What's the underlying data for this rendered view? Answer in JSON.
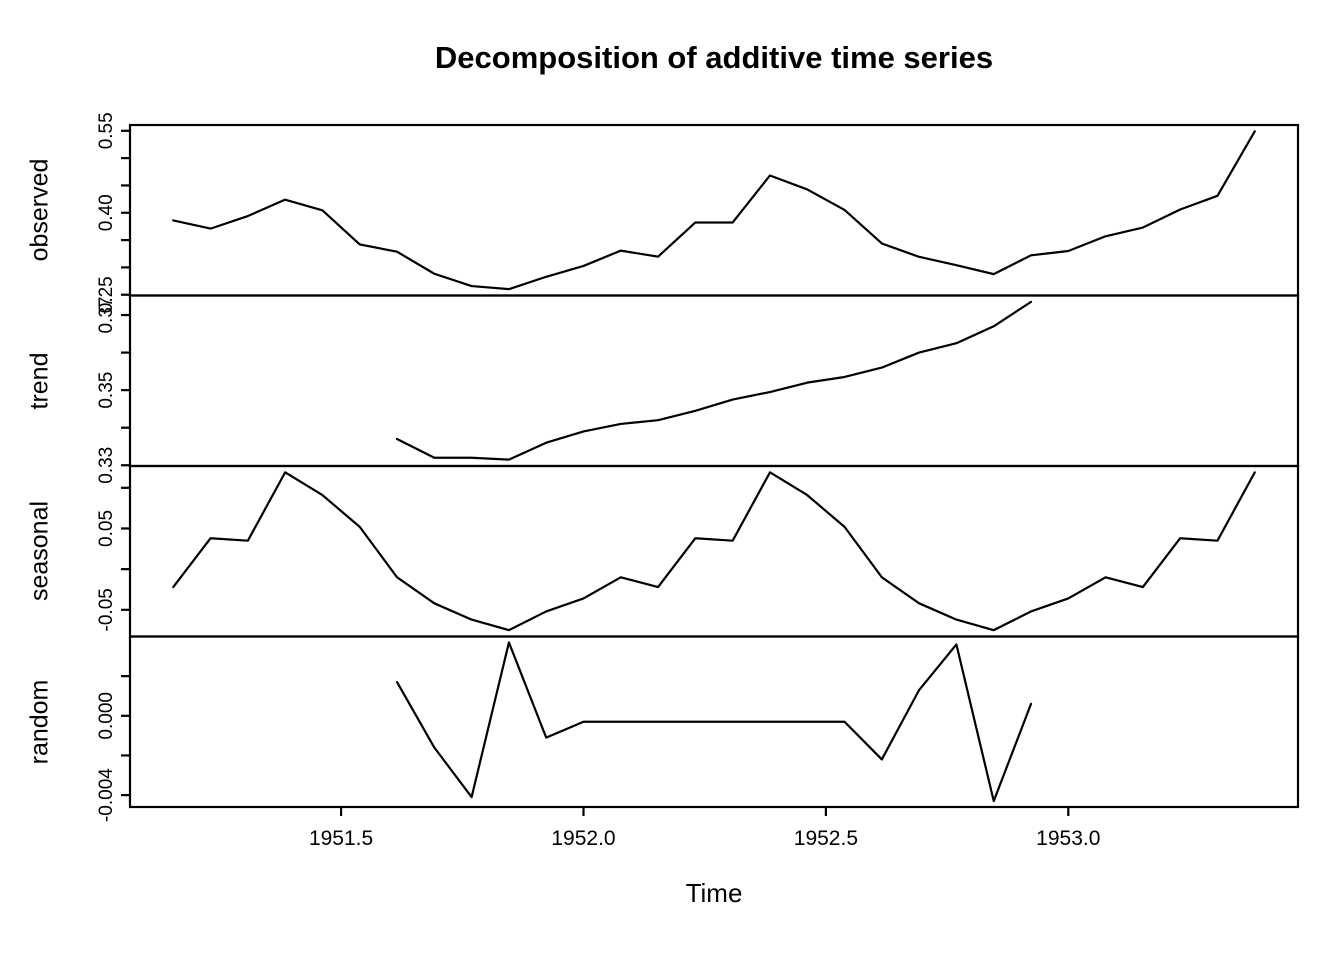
{
  "window": {
    "background_color": "#ffffff",
    "foreground_color": "#000000"
  },
  "chart_data": {
    "type": "line",
    "title": "Decomposition of additive time series",
    "xlabel": "Time",
    "grid": false,
    "legend": "none",
    "line_color": "#000000",
    "frequency": 13,
    "x_start": 1951.1538,
    "x_end": 1953.3846,
    "xlim": [
      1951.0646,
      1953.4738
    ],
    "x_ticks": [
      {
        "v": 1951.5,
        "label": "1951.5"
      },
      {
        "v": 1952.0,
        "label": "1952.0"
      },
      {
        "v": 1952.5,
        "label": "1952.5"
      },
      {
        "v": 1953.0,
        "label": "1953.0"
      }
    ],
    "x": [
      1951.1538,
      1951.2308,
      1951.3077,
      1951.3846,
      1951.4615,
      1951.5385,
      1951.6154,
      1951.6923,
      1951.7692,
      1951.8462,
      1951.9231,
      1952.0,
      1952.0769,
      1952.1538,
      1952.2308,
      1952.3077,
      1952.3846,
      1952.4615,
      1952.5385,
      1952.6154,
      1952.6923,
      1952.7692,
      1952.8462,
      1952.9231,
      1953.0,
      1953.0769,
      1953.1538,
      1953.2308,
      1953.3077,
      1953.3846
    ],
    "seasonal_cycle": [
      -0.022,
      0.038,
      0.035,
      0.119,
      0.091,
      0.052,
      -0.01,
      -0.042,
      -0.062,
      -0.075,
      -0.052,
      -0.036,
      -0.01
    ],
    "panels": [
      {
        "name": "observed",
        "start_index": 0,
        "values": [
          0.386,
          0.371,
          0.394,
          0.424,
          0.4045,
          0.342,
          0.3287,
          0.2884,
          0.2659,
          0.2602,
          0.2829,
          0.3027,
          0.3307,
          0.3197,
          0.3822,
          0.3822,
          0.4682,
          0.4427,
          0.4052,
          0.3438,
          0.3193,
          0.3041,
          0.2877,
          0.3221,
          0.33,
          0.357,
          0.373,
          0.406,
          0.431,
          0.549
        ],
        "ylim": [
          0.2486,
          0.5606
        ],
        "ticks": [
          {
            "v": 0.25,
            "label": "0.25"
          },
          {
            "v": 0.3,
            "label": ""
          },
          {
            "v": 0.35,
            "label": ""
          },
          {
            "v": 0.4,
            "label": "0.40"
          },
          {
            "v": 0.45,
            "label": ""
          },
          {
            "v": 0.5,
            "label": ""
          },
          {
            "v": 0.55,
            "label": "0.55"
          }
        ]
      },
      {
        "name": "trend",
        "start_index": 6,
        "values": [
          0.337,
          0.332,
          0.332,
          0.3315,
          0.336,
          0.339,
          0.341,
          0.342,
          0.3445,
          0.3475,
          0.3495,
          0.352,
          0.3535,
          0.356,
          0.36,
          0.3625,
          0.367,
          0.3735
        ],
        "ylim": [
          0.3298,
          0.3752
        ],
        "ticks": [
          {
            "v": 0.33,
            "label": "0.33"
          },
          {
            "v": 0.34,
            "label": ""
          },
          {
            "v": 0.35,
            "label": "0.35"
          },
          {
            "v": 0.36,
            "label": ""
          },
          {
            "v": 0.37,
            "label": "0.37"
          }
        ]
      },
      {
        "name": "seasonal",
        "start_index": 0,
        "values": [
          -0.022,
          0.038,
          0.035,
          0.119,
          0.091,
          0.052,
          -0.01,
          -0.042,
          -0.062,
          -0.075,
          -0.052,
          -0.036,
          -0.01,
          -0.022,
          0.038,
          0.035,
          0.119,
          0.091,
          0.052,
          -0.01,
          -0.042,
          -0.062,
          -0.075,
          -0.052,
          -0.036,
          -0.01,
          -0.022,
          0.038,
          0.035,
          0.119
        ],
        "ylim": [
          -0.0828,
          0.1268
        ],
        "ticks": [
          {
            "v": -0.05,
            "label": "-0.05"
          },
          {
            "v": 0.0,
            "label": ""
          },
          {
            "v": 0.05,
            "label": "0.05"
          },
          {
            "v": 0.1,
            "label": ""
          }
        ]
      },
      {
        "name": "random",
        "start_index": 6,
        "values": [
          0.0017,
          -0.0016,
          -0.0041,
          0.0037,
          -0.0011,
          -0.0003,
          -0.0003,
          -0.0003,
          -0.0003,
          -0.0003,
          -0.0003,
          -0.0003,
          -0.0003,
          -0.0022,
          0.0013,
          0.0036,
          -0.0043,
          0.0006
        ],
        "ylim": [
          -0.0046,
          0.004
        ],
        "ticks": [
          {
            "v": -0.004,
            "label": "-0.004"
          },
          {
            "v": -0.002,
            "label": ""
          },
          {
            "v": 0.0,
            "label": "0.000"
          },
          {
            "v": 0.002,
            "label": ""
          }
        ]
      }
    ]
  }
}
